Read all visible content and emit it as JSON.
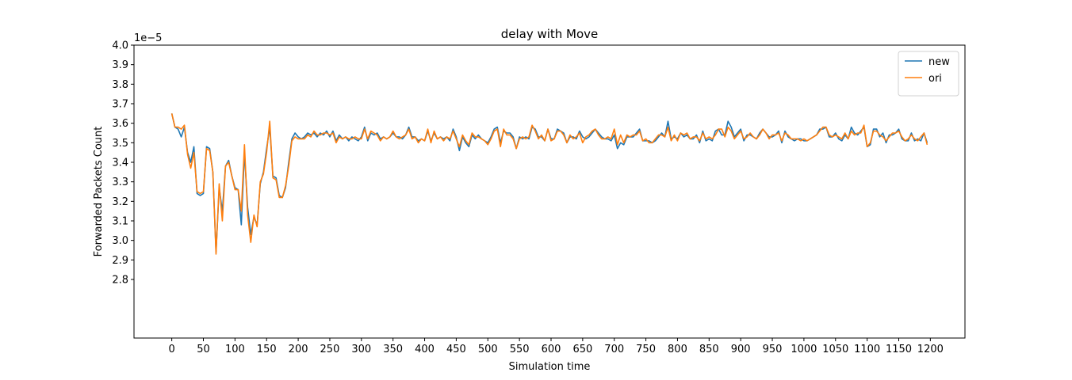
{
  "chart_data": {
    "type": "line",
    "title": "delay with Move",
    "xlabel": "Simulation time",
    "ylabel": "Forwarded Packets Count",
    "y_offset_label": "1e−5",
    "x": [
      0,
      5,
      10,
      15,
      20,
      25,
      30,
      35,
      40,
      45,
      50,
      55,
      60,
      65,
      70,
      75,
      80,
      85,
      90,
      95,
      100,
      105,
      110,
      115,
      120,
      125,
      130,
      135,
      140,
      145,
      150,
      155,
      160,
      165,
      170,
      175,
      180,
      185,
      190,
      195,
      200,
      205,
      210,
      215,
      220,
      225,
      230,
      235,
      240,
      245,
      250,
      255,
      260,
      265,
      270,
      275,
      280,
      285,
      290,
      295,
      300,
      305,
      310,
      315,
      320,
      325,
      330,
      335,
      340,
      345,
      350,
      355,
      360,
      365,
      370,
      375,
      380,
      385,
      390,
      395,
      400,
      405,
      410,
      415,
      420,
      425,
      430,
      435,
      440,
      445,
      450,
      455,
      460,
      465,
      470,
      475,
      480,
      485,
      490,
      495,
      500,
      505,
      510,
      515,
      520,
      525,
      530,
      535,
      540,
      545,
      550,
      555,
      560,
      565,
      570,
      575,
      580,
      585,
      590,
      595,
      600,
      605,
      610,
      615,
      620,
      625,
      630,
      635,
      640,
      645,
      650,
      655,
      660,
      665,
      670,
      675,
      680,
      685,
      690,
      695,
      700,
      705,
      710,
      715,
      720,
      725,
      730,
      735,
      740,
      745,
      750,
      755,
      760,
      765,
      770,
      775,
      780,
      785,
      790,
      795,
      800,
      805,
      810,
      815,
      820,
      825,
      830,
      835,
      840,
      845,
      850,
      855,
      860,
      865,
      870,
      875,
      880,
      885,
      890,
      895,
      900,
      905,
      910,
      915,
      920,
      925,
      930,
      935,
      940,
      945,
      950,
      955,
      960,
      965,
      970,
      975,
      980,
      985,
      990,
      995,
      1000,
      1005,
      1010,
      1015,
      1020,
      1025,
      1030,
      1035,
      1040,
      1045,
      1050,
      1055,
      1060,
      1065,
      1070,
      1075,
      1080,
      1085,
      1090,
      1095,
      1100,
      1105,
      1110,
      1115,
      1120,
      1125,
      1130,
      1135,
      1140,
      1145,
      1150,
      1155,
      1160,
      1165,
      1170,
      1175,
      1180,
      1185,
      1190,
      1195
    ],
    "series": [
      {
        "name": "new",
        "color": "#1f77b4",
        "values": [
          3.65,
          3.58,
          3.57,
          3.53,
          3.58,
          3.45,
          3.4,
          3.48,
          3.24,
          3.23,
          3.24,
          3.48,
          3.47,
          3.35,
          2.94,
          3.27,
          3.15,
          3.38,
          3.41,
          3.33,
          3.27,
          3.26,
          3.08,
          3.45,
          3.17,
          3.03,
          3.12,
          3.08,
          3.29,
          3.35,
          3.47,
          3.58,
          3.33,
          3.32,
          3.23,
          3.22,
          3.27,
          3.4,
          3.52,
          3.55,
          3.53,
          3.52,
          3.53,
          3.55,
          3.54,
          3.55,
          3.53,
          3.55,
          3.54,
          3.56,
          3.53,
          3.56,
          3.51,
          3.54,
          3.52,
          3.53,
          3.51,
          3.53,
          3.52,
          3.51,
          3.53,
          3.58,
          3.51,
          3.55,
          3.54,
          3.55,
          3.52,
          3.53,
          3.52,
          3.53,
          3.55,
          3.53,
          3.53,
          3.52,
          3.54,
          3.58,
          3.53,
          3.53,
          3.51,
          3.52,
          3.51,
          3.56,
          3.51,
          3.55,
          3.52,
          3.53,
          3.52,
          3.53,
          3.51,
          3.57,
          3.53,
          3.46,
          3.53,
          3.5,
          3.48,
          3.54,
          3.52,
          3.54,
          3.52,
          3.51,
          3.5,
          3.53,
          3.57,
          3.58,
          3.5,
          3.56,
          3.55,
          3.55,
          3.53,
          3.47,
          3.53,
          3.52,
          3.53,
          3.52,
          3.58,
          3.57,
          3.53,
          3.53,
          3.51,
          3.57,
          3.52,
          3.52,
          3.57,
          3.56,
          3.55,
          3.5,
          3.53,
          3.53,
          3.52,
          3.56,
          3.53,
          3.52,
          3.53,
          3.55,
          3.57,
          3.55,
          3.53,
          3.52,
          3.52,
          3.51,
          3.54,
          3.47,
          3.5,
          3.49,
          3.53,
          3.53,
          3.53,
          3.55,
          3.57,
          3.51,
          3.51,
          3.51,
          3.5,
          3.51,
          3.53,
          3.55,
          3.53,
          3.61,
          3.52,
          3.53,
          3.52,
          3.55,
          3.53,
          3.54,
          3.52,
          3.52,
          3.54,
          3.5,
          3.56,
          3.51,
          3.52,
          3.51,
          3.56,
          3.57,
          3.54,
          3.54,
          3.61,
          3.58,
          3.53,
          3.55,
          3.57,
          3.51,
          3.54,
          3.54,
          3.53,
          3.52,
          3.55,
          3.57,
          3.55,
          3.53,
          3.53,
          3.54,
          3.56,
          3.5,
          3.56,
          3.53,
          3.52,
          3.51,
          3.52,
          3.52,
          3.51,
          3.51,
          3.52,
          3.53,
          3.54,
          3.57,
          3.57,
          3.58,
          3.53,
          3.53,
          3.55,
          3.52,
          3.51,
          3.54,
          3.52,
          3.58,
          3.55,
          3.54,
          3.56,
          3.58,
          3.48,
          3.49,
          3.57,
          3.57,
          3.53,
          3.55,
          3.5,
          3.54,
          3.54,
          3.55,
          3.57,
          3.52,
          3.51,
          3.51,
          3.55,
          3.51,
          3.52,
          3.51,
          3.55,
          3.5
        ]
      },
      {
        "name": "ori",
        "color": "#ff7f0e",
        "values": [
          3.65,
          3.58,
          3.58,
          3.57,
          3.59,
          3.44,
          3.37,
          3.45,
          3.25,
          3.24,
          3.25,
          3.47,
          3.46,
          3.35,
          2.93,
          3.29,
          3.1,
          3.38,
          3.4,
          3.33,
          3.26,
          3.26,
          3.15,
          3.49,
          3.13,
          2.99,
          3.13,
          3.07,
          3.3,
          3.34,
          3.45,
          3.61,
          3.32,
          3.31,
          3.22,
          3.22,
          3.28,
          3.38,
          3.51,
          3.53,
          3.52,
          3.52,
          3.52,
          3.54,
          3.53,
          3.56,
          3.54,
          3.54,
          3.55,
          3.55,
          3.54,
          3.55,
          3.5,
          3.53,
          3.52,
          3.53,
          3.52,
          3.52,
          3.53,
          3.52,
          3.52,
          3.57,
          3.52,
          3.56,
          3.55,
          3.54,
          3.51,
          3.53,
          3.52,
          3.53,
          3.56,
          3.53,
          3.52,
          3.53,
          3.54,
          3.57,
          3.52,
          3.53,
          3.5,
          3.52,
          3.51,
          3.57,
          3.5,
          3.56,
          3.52,
          3.53,
          3.51,
          3.53,
          3.52,
          3.56,
          3.52,
          3.48,
          3.54,
          3.51,
          3.49,
          3.55,
          3.53,
          3.53,
          3.52,
          3.51,
          3.49,
          3.52,
          3.56,
          3.57,
          3.48,
          3.57,
          3.54,
          3.54,
          3.52,
          3.47,
          3.52,
          3.53,
          3.52,
          3.53,
          3.59,
          3.56,
          3.52,
          3.54,
          3.51,
          3.57,
          3.51,
          3.52,
          3.56,
          3.56,
          3.54,
          3.5,
          3.54,
          3.52,
          3.53,
          3.55,
          3.5,
          3.53,
          3.54,
          3.56,
          3.57,
          3.54,
          3.52,
          3.52,
          3.53,
          3.52,
          3.57,
          3.49,
          3.54,
          3.5,
          3.54,
          3.53,
          3.54,
          3.54,
          3.56,
          3.51,
          3.52,
          3.5,
          3.5,
          3.52,
          3.54,
          3.54,
          3.53,
          3.58,
          3.51,
          3.54,
          3.51,
          3.55,
          3.54,
          3.55,
          3.52,
          3.53,
          3.53,
          3.51,
          3.55,
          3.52,
          3.53,
          3.52,
          3.54,
          3.57,
          3.57,
          3.53,
          3.58,
          3.56,
          3.52,
          3.54,
          3.56,
          3.52,
          3.53,
          3.55,
          3.53,
          3.52,
          3.54,
          3.57,
          3.55,
          3.52,
          3.54,
          3.54,
          3.55,
          3.51,
          3.55,
          3.54,
          3.52,
          3.52,
          3.52,
          3.51,
          3.52,
          3.51,
          3.52,
          3.53,
          3.54,
          3.56,
          3.58,
          3.58,
          3.54,
          3.53,
          3.54,
          3.53,
          3.52,
          3.55,
          3.52,
          3.56,
          3.54,
          3.55,
          3.55,
          3.59,
          3.48,
          3.5,
          3.56,
          3.56,
          3.54,
          3.53,
          3.51,
          3.53,
          3.55,
          3.55,
          3.56,
          3.53,
          3.51,
          3.52,
          3.54,
          3.52,
          3.51,
          3.53,
          3.55,
          3.49
        ]
      }
    ],
    "xlim": [
      -59.75,
      1254.75
    ],
    "ylim": [
      2.5,
      4.0
    ],
    "xticks": [
      0,
      50,
      100,
      150,
      200,
      250,
      300,
      350,
      400,
      450,
      500,
      550,
      600,
      650,
      700,
      750,
      800,
      850,
      900,
      950,
      1000,
      1050,
      1100,
      1150,
      1200
    ],
    "yticks": [
      2.8,
      2.9,
      {
        "value": 3,
        "label": "3.0"
      },
      3.1,
      3.2,
      3.3,
      3.4,
      3.5,
      3.6,
      3.7,
      3.8,
      3.9,
      {
        "value": 4,
        "label": "4.0"
      }
    ],
    "grid": false,
    "legend": "upper right"
  }
}
